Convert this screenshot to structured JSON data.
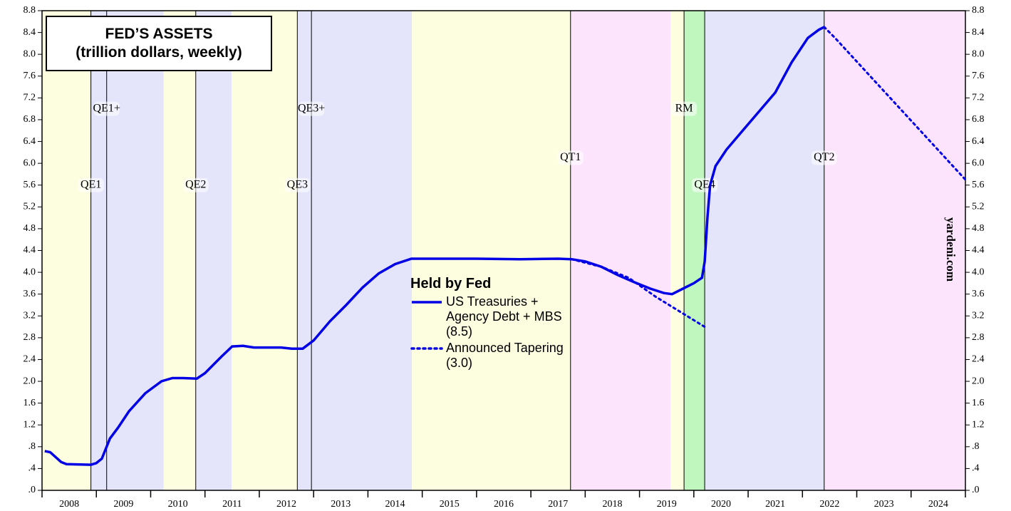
{
  "chart_data": {
    "type": "line",
    "title": "FED’S ASSETS",
    "subtitle": "(trillion dollars, weekly)",
    "legend_title": "Held by Fed",
    "watermark": "yardeni.com",
    "xlim": [
      2008,
      2025
    ],
    "xticks": [
      2008,
      2009,
      2010,
      2011,
      2012,
      2013,
      2014,
      2015,
      2016,
      2017,
      2018,
      2019,
      2020,
      2021,
      2022,
      2023,
      2024,
      2025
    ],
    "xlabels": [
      "2008",
      "2009",
      "2010",
      "2011",
      "2012",
      "2013",
      "2014",
      "2015",
      "2016",
      "2017",
      "2018",
      "2019",
      "2020",
      "2021",
      "2022",
      "2023",
      "2024"
    ],
    "ylim": [
      0,
      8.8
    ],
    "yticks": [
      {
        "value": 0,
        "label": ".0"
      },
      {
        "value": 0.4,
        "label": ".4"
      },
      {
        "value": 0.8,
        "label": ".8"
      },
      1.2,
      1.6,
      {
        "value": 2,
        "label": "2.0"
      },
      2.4,
      2.8,
      3.2,
      3.6,
      {
        "value": 4,
        "label": "4.0"
      },
      4.4,
      4.8,
      5.2,
      5.6,
      {
        "value": 6,
        "label": "6.0"
      },
      6.4,
      6.8,
      7.2,
      7.6,
      {
        "value": 8,
        "label": "8.0"
      },
      8.4,
      8.8
    ],
    "bands": [
      {
        "start": 2008,
        "end": 2008.9,
        "color": "#fdfde0"
      },
      {
        "start": 2008.9,
        "end": 2010.24,
        "color": "#e4e4fb"
      },
      {
        "start": 2010.24,
        "end": 2010.83,
        "color": "#fdfde0"
      },
      {
        "start": 2010.83,
        "end": 2011.49,
        "color": "#e4e4fb"
      },
      {
        "start": 2011.49,
        "end": 2012.7,
        "color": "#fdfde0"
      },
      {
        "start": 2012.7,
        "end": 2014.81,
        "color": "#e4e4fb"
      },
      {
        "start": 2014.81,
        "end": 2017.73,
        "color": "#fdfde0"
      },
      {
        "start": 2017.73,
        "end": 2019.57,
        "color": "#fce4fc"
      },
      {
        "start": 2019.57,
        "end": 2019.82,
        "color": "#fdfde0"
      },
      {
        "start": 2019.82,
        "end": 2020.2,
        "color": "#bff7bf"
      },
      {
        "start": 2020.2,
        "end": 2022.4,
        "color": "#e4e4fb"
      },
      {
        "start": 2022.4,
        "end": 2025,
        "color": "#fce4fc"
      }
    ],
    "events": [
      {
        "x": 2008.9,
        "label": "QE1"
      },
      {
        "x": 2009.19,
        "label": "QE1+"
      },
      {
        "x": 2010.83,
        "label": "QE2"
      },
      {
        "x": 2012.7,
        "label": "QE3"
      },
      {
        "x": 2012.96,
        "label": "QE3+"
      },
      {
        "x": 2017.73,
        "label": "QT1"
      },
      {
        "x": 2019.82,
        "label": "RM"
      },
      {
        "x": 2020.2,
        "label": "QE4"
      },
      {
        "x": 2022.4,
        "label": "QT2"
      }
    ],
    "series": [
      {
        "name": "US Treasuries + Agency Debt + MBS (8.5)",
        "color": "#0000e6",
        "style": "solid",
        "x": [
          2008.05,
          2008.15,
          2008.35,
          2008.45,
          2008.9,
          2009.0,
          2009.1,
          2009.25,
          2009.4,
          2009.6,
          2009.9,
          2010.2,
          2010.4,
          2010.6,
          2010.85,
          2011.0,
          2011.3,
          2011.5,
          2011.7,
          2011.9,
          2012.1,
          2012.4,
          2012.6,
          2012.8,
          2013.0,
          2013.3,
          2013.6,
          2013.9,
          2014.2,
          2014.5,
          2014.8,
          2015.2,
          2016.0,
          2016.8,
          2017.5,
          2017.75,
          2018.0,
          2018.3,
          2018.6,
          2018.9,
          2019.2,
          2019.45,
          2019.6,
          2019.8,
          2020.0,
          2020.15,
          2020.2,
          2020.25,
          2020.3,
          2020.4,
          2020.6,
          2020.9,
          2021.2,
          2021.5,
          2021.8,
          2022.1,
          2022.3,
          2022.4
        ],
        "values": [
          0.72,
          0.7,
          0.52,
          0.48,
          0.47,
          0.5,
          0.58,
          0.95,
          1.15,
          1.45,
          1.78,
          2.0,
          2.06,
          2.06,
          2.05,
          2.15,
          2.45,
          2.64,
          2.65,
          2.62,
          2.62,
          2.62,
          2.6,
          2.6,
          2.75,
          3.1,
          3.4,
          3.72,
          3.98,
          4.15,
          4.25,
          4.25,
          4.25,
          4.24,
          4.25,
          4.24,
          4.2,
          4.1,
          3.95,
          3.82,
          3.7,
          3.62,
          3.6,
          3.7,
          3.8,
          3.9,
          4.2,
          5.0,
          5.6,
          5.95,
          6.25,
          6.6,
          6.95,
          7.3,
          7.85,
          8.3,
          8.45,
          8.5
        ]
      },
      {
        "name": "Announced Tapering (3.0)",
        "color": "#0000e6",
        "style": "dotted",
        "x": [
          2017.75,
          2018.3,
          2018.8,
          2019.3,
          2020.2,
          null,
          2022.4,
          2022.6,
          2025.0
        ],
        "values": [
          4.24,
          4.1,
          3.9,
          3.55,
          3.0,
          null,
          8.5,
          8.3,
          5.7
        ]
      }
    ]
  }
}
